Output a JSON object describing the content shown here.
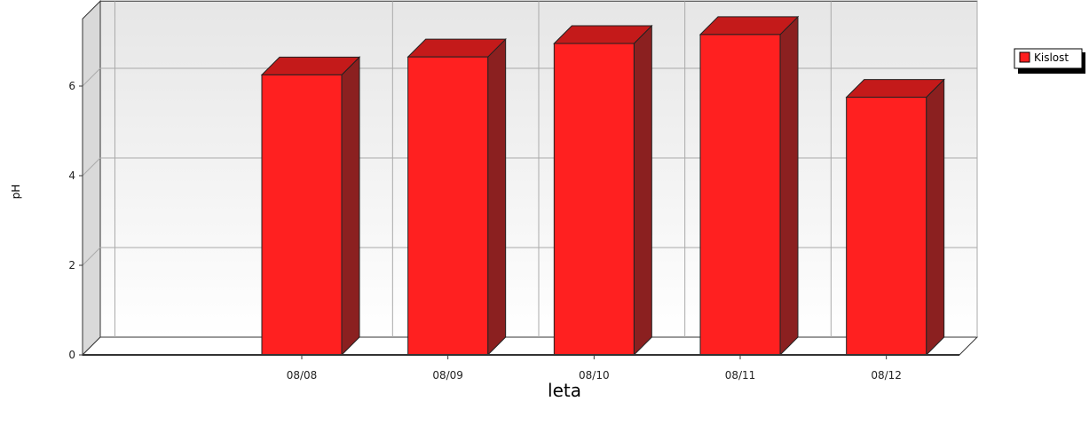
{
  "chart_data": {
    "type": "bar",
    "categories": [
      "08/08",
      "08/09",
      "08/10",
      "08/11",
      "08/12"
    ],
    "series": [
      {
        "name": "Kislost",
        "values": [
          6.25,
          6.65,
          6.95,
          7.15,
          5.75
        ]
      }
    ],
    "xlabel": "leta",
    "ylabel": "pH",
    "ylim": [
      0,
      7.5
    ],
    "yticks": [
      0,
      2,
      4,
      6
    ],
    "grid": true,
    "style": "3d",
    "legend_position": "top-right",
    "colors": {
      "bar_front": "#ff2020",
      "bar_top": "#c41a1a",
      "bar_side": "#8b2020",
      "plot_bg_top": "#e6e6e6",
      "plot_bg_bottom": "#ffffff"
    }
  }
}
